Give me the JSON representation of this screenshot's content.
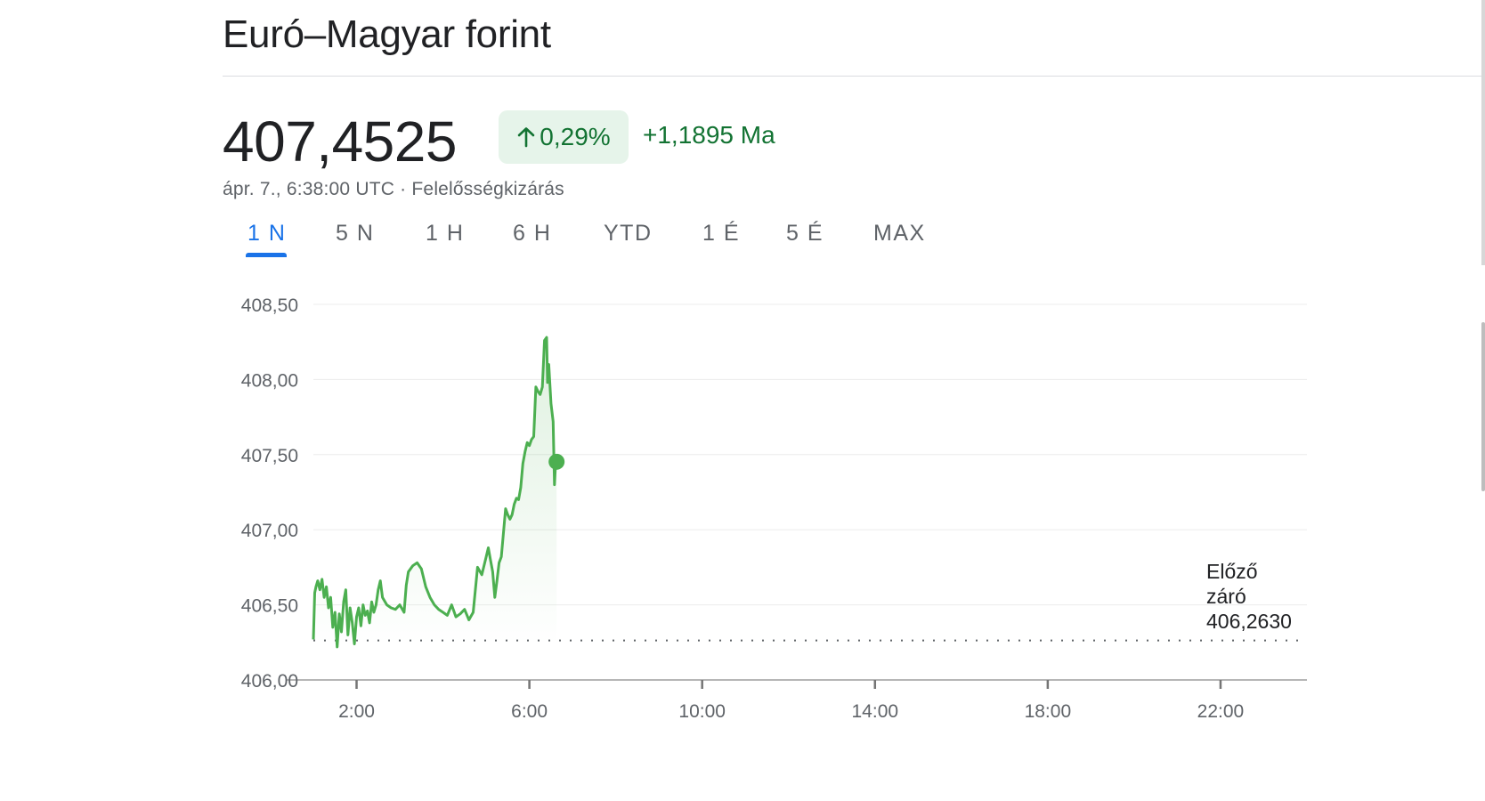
{
  "header": {
    "title": "Euró–Magyar forint"
  },
  "quote": {
    "price": "407,4525",
    "change_percent": "0,29%",
    "change_abs": "+1,1895 Ma",
    "timestamp": "ápr. 7., 6:38:00 UTC",
    "separator": "·",
    "disclaimer": "Felelősségkizárás",
    "arrow_icon": "arrow-up-icon"
  },
  "tabs": [
    {
      "label": "1 N",
      "active": true
    },
    {
      "label": "5 N",
      "active": false
    },
    {
      "label": "1 H",
      "active": false
    },
    {
      "label": "6 H",
      "active": false
    },
    {
      "label": "YTD",
      "active": false
    },
    {
      "label": "1 É",
      "active": false
    },
    {
      "label": "5 É",
      "active": false
    },
    {
      "label": "MAX",
      "active": false
    }
  ],
  "colors": {
    "accent": "#1a73e8",
    "positive": "#137333",
    "line": "#4caf50"
  },
  "chart_data": {
    "type": "line",
    "title": "",
    "xlabel": "",
    "ylabel": "",
    "x_unit": "hour",
    "xlim": [
      1.0,
      24.0
    ],
    "ylim": [
      406.0,
      408.5
    ],
    "y_ticks": [
      "408,50",
      "408,00",
      "407,50",
      "407,00",
      "406,50",
      "406,00"
    ],
    "y_tick_values": [
      408.5,
      408.0,
      407.5,
      407.0,
      406.5,
      406.0
    ],
    "x_ticks": [
      "2:00",
      "6:00",
      "10:00",
      "14:00",
      "18:00",
      "22:00"
    ],
    "x_tick_values": [
      2,
      6,
      10,
      14,
      18,
      22
    ],
    "grid": true,
    "previous_close": {
      "label_line1": "Előző",
      "label_line2": "záró",
      "value": "406,2630",
      "y": 406.263
    },
    "last_point": {
      "x": 6.63,
      "y": 407.4525
    },
    "series": [
      {
        "name": "",
        "x": [
          1.0,
          1.03,
          1.06,
          1.1,
          1.15,
          1.2,
          1.25,
          1.3,
          1.35,
          1.4,
          1.45,
          1.5,
          1.55,
          1.6,
          1.65,
          1.7,
          1.75,
          1.8,
          1.85,
          1.9,
          1.95,
          2.0,
          2.05,
          2.1,
          2.15,
          2.2,
          2.25,
          2.3,
          2.35,
          2.4,
          2.45,
          2.5,
          2.55,
          2.6,
          2.7,
          2.8,
          2.9,
          3.0,
          3.1,
          3.15,
          3.2,
          3.3,
          3.4,
          3.5,
          3.6,
          3.7,
          3.8,
          3.9,
          4.0,
          4.1,
          4.2,
          4.3,
          4.4,
          4.5,
          4.6,
          4.7,
          4.8,
          4.9,
          5.0,
          5.05,
          5.1,
          5.15,
          5.2,
          5.25,
          5.3,
          5.35,
          5.4,
          5.45,
          5.5,
          5.55,
          5.6,
          5.65,
          5.7,
          5.75,
          5.8,
          5.85,
          5.9,
          5.95,
          6.0,
          6.05,
          6.1,
          6.15,
          6.2,
          6.25,
          6.3,
          6.35,
          6.4,
          6.42,
          6.45,
          6.5,
          6.55,
          6.58,
          6.6,
          6.63
        ],
        "y": [
          406.27,
          406.58,
          406.62,
          406.66,
          406.6,
          406.67,
          406.55,
          406.62,
          406.48,
          406.55,
          406.35,
          406.45,
          406.22,
          406.44,
          406.32,
          406.52,
          406.6,
          406.3,
          406.48,
          406.38,
          406.24,
          406.42,
          406.48,
          406.36,
          406.5,
          406.43,
          406.46,
          406.38,
          406.52,
          406.45,
          406.5,
          406.6,
          406.66,
          406.55,
          406.5,
          406.48,
          406.47,
          406.5,
          406.45,
          406.63,
          406.72,
          406.76,
          406.78,
          406.74,
          406.62,
          406.55,
          406.5,
          406.47,
          406.45,
          406.43,
          406.5,
          406.42,
          406.44,
          406.47,
          406.4,
          406.45,
          406.75,
          406.7,
          406.82,
          406.88,
          406.8,
          406.72,
          406.55,
          406.66,
          406.78,
          406.82,
          406.98,
          407.14,
          407.1,
          407.07,
          407.1,
          407.17,
          407.21,
          407.2,
          407.28,
          407.44,
          407.52,
          407.58,
          407.56,
          407.6,
          407.62,
          407.95,
          407.92,
          407.9,
          407.95,
          408.26,
          408.28,
          407.98,
          408.1,
          407.84,
          407.72,
          407.3,
          407.4,
          407.4525
        ]
      }
    ]
  }
}
